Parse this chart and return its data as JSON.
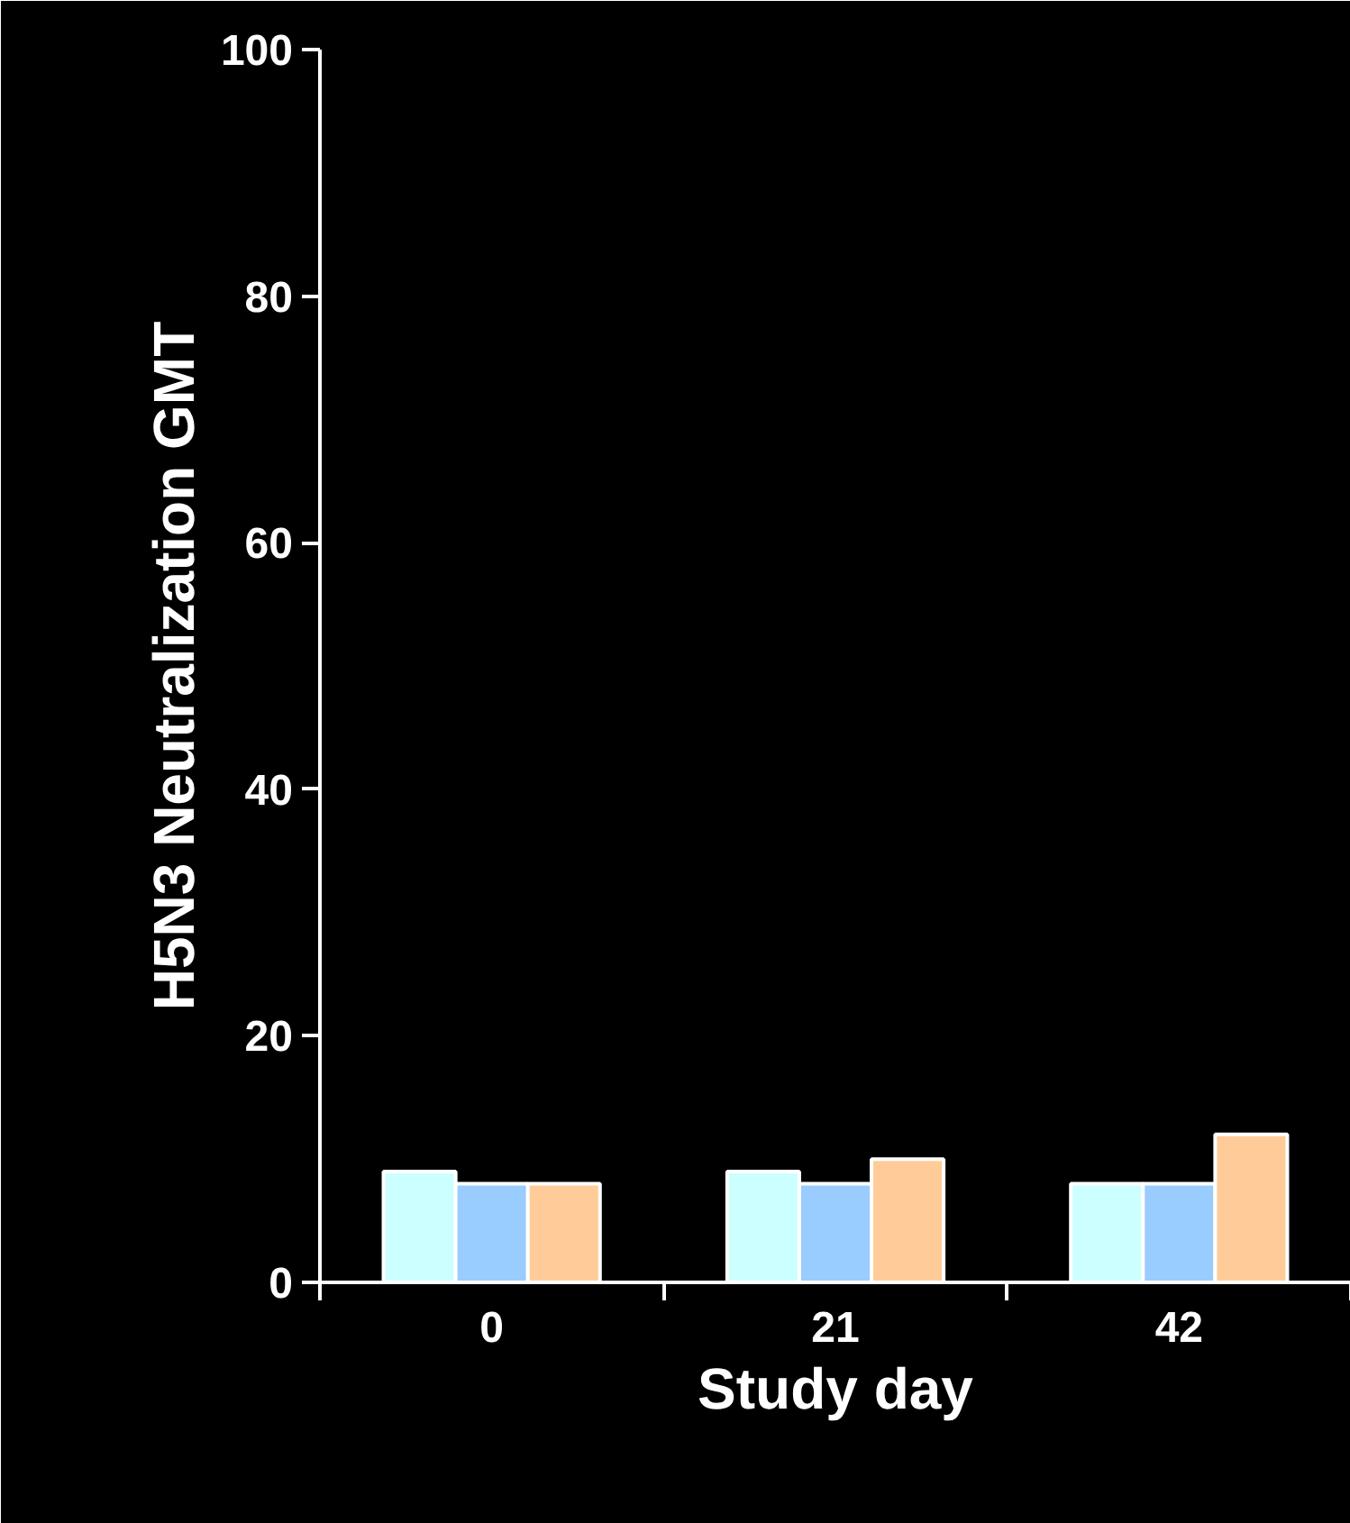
{
  "chart_data": {
    "type": "bar",
    "xlabel": "Study day",
    "ylabel": "H5N3 Neutralization GMT",
    "categories": [
      "0",
      "21",
      "42"
    ],
    "series": [
      {
        "color": "#ccffff",
        "values": [
          9,
          9,
          8
        ]
      },
      {
        "color": "#99ccff",
        "values": [
          8,
          8,
          8
        ]
      },
      {
        "color": "#ffcc99",
        "values": [
          8,
          10,
          12
        ]
      }
    ],
    "ylim": [
      0,
      100
    ],
    "yticks": [
      0,
      20,
      40,
      60,
      80,
      100
    ],
    "grid": false
  }
}
